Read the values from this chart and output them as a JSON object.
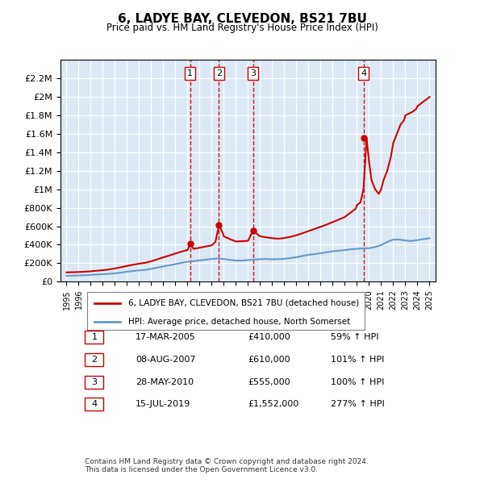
{
  "title": "6, LADYE BAY, CLEVEDON, BS21 7BU",
  "subtitle": "Price paid vs. HM Land Registry's House Price Index (HPI)",
  "background_color": "#dce9f5",
  "plot_bg_color": "#dce9f5",
  "ylabel_color": "#000000",
  "grid_color": "#ffffff",
  "hpi_line_color": "#6699cc",
  "price_line_color": "#cc0000",
  "dashed_line_color": "#cc0000",
  "ylim": [
    0,
    2400000
  ],
  "yticks": [
    0,
    200000,
    400000,
    600000,
    800000,
    1000000,
    1200000,
    1400000,
    1600000,
    1800000,
    2000000,
    2200000
  ],
  "ytick_labels": [
    "£0",
    "£200K",
    "£400K",
    "£600K",
    "£800K",
    "£1M",
    "£1.2M",
    "£1.4M",
    "£1.6M",
    "£1.8M",
    "£2M",
    "£2.2M"
  ],
  "xlim_start": 1994.5,
  "xlim_end": 2025.5,
  "xtick_years": [
    1995,
    1996,
    1997,
    1998,
    1999,
    2000,
    2001,
    2002,
    2003,
    2004,
    2005,
    2006,
    2007,
    2008,
    2009,
    2010,
    2011,
    2012,
    2013,
    2014,
    2015,
    2016,
    2017,
    2018,
    2019,
    2020,
    2021,
    2022,
    2023,
    2024,
    2025
  ],
  "sale_points": [
    {
      "year": 2005.21,
      "price": 410000,
      "label": "1"
    },
    {
      "year": 2007.6,
      "price": 610000,
      "label": "2"
    },
    {
      "year": 2010.41,
      "price": 555000,
      "label": "3"
    },
    {
      "year": 2019.54,
      "price": 1552000,
      "label": "4"
    }
  ],
  "hpi_data_x": [
    1995,
    1995.5,
    1996,
    1996.5,
    1997,
    1997.5,
    1998,
    1998.5,
    1999,
    1999.5,
    2000,
    2000.5,
    2001,
    2001.5,
    2002,
    2002.5,
    2003,
    2003.5,
    2004,
    2004.5,
    2005,
    2005.5,
    2006,
    2006.5,
    2007,
    2007.5,
    2008,
    2008.5,
    2009,
    2009.5,
    2010,
    2010.5,
    2011,
    2011.5,
    2012,
    2012.5,
    2013,
    2013.5,
    2014,
    2014.5,
    2015,
    2015.5,
    2016,
    2016.5,
    2017,
    2017.5,
    2018,
    2018.5,
    2019,
    2019.5,
    2020,
    2020.5,
    2021,
    2021.5,
    2022,
    2022.5,
    2023,
    2023.5,
    2024,
    2024.5,
    2025
  ],
  "hpi_data_y": [
    62000,
    64000,
    67000,
    69000,
    73000,
    77000,
    80000,
    84000,
    90000,
    98000,
    107000,
    115000,
    122000,
    128000,
    138000,
    152000,
    165000,
    177000,
    190000,
    203000,
    215000,
    222000,
    230000,
    238000,
    246000,
    250000,
    245000,
    235000,
    228000,
    228000,
    233000,
    238000,
    243000,
    245000,
    242000,
    243000,
    247000,
    255000,
    265000,
    278000,
    290000,
    298000,
    308000,
    318000,
    328000,
    335000,
    342000,
    350000,
    355000,
    360000,
    362000,
    375000,
    395000,
    430000,
    455000,
    455000,
    445000,
    440000,
    450000,
    460000,
    470000
  ],
  "price_data_x": [
    1995,
    1995.3,
    1995.6,
    1996,
    1996.5,
    1997,
    1997.5,
    1998,
    1998.5,
    1999,
    1999.5,
    2000,
    2000.5,
    2001,
    2001.5,
    2002,
    2002.5,
    2003,
    2003.5,
    2004,
    2004.5,
    2005,
    2005.21,
    2005.5,
    2006,
    2006.5,
    2007,
    2007.3,
    2007.6,
    2007.9,
    2008,
    2008.5,
    2009,
    2009.5,
    2010,
    2010.41,
    2010.8,
    2011,
    2011.5,
    2012,
    2012.5,
    2013,
    2013.5,
    2014,
    2014.5,
    2015,
    2015.5,
    2016,
    2016.5,
    2017,
    2017.5,
    2018,
    2018.3,
    2018.6,
    2018.9,
    2019,
    2019.3,
    2019.54,
    2019.8,
    2020,
    2020.2,
    2020.5,
    2020.8,
    2021,
    2021.2,
    2021.5,
    2021.8,
    2022,
    2022.3,
    2022.6,
    2022.9,
    2023,
    2023.3,
    2023.6,
    2023.9,
    2024,
    2024.3,
    2024.6,
    2025
  ],
  "price_data_y": [
    100000,
    101000,
    102000,
    104000,
    107000,
    112000,
    118000,
    124000,
    132000,
    143000,
    156000,
    170000,
    183000,
    194000,
    204000,
    220000,
    242000,
    263000,
    283000,
    304000,
    325000,
    343000,
    410000,
    355000,
    367000,
    380000,
    393000,
    430000,
    610000,
    530000,
    490000,
    460000,
    435000,
    438000,
    442000,
    555000,
    510000,
    490000,
    480000,
    470000,
    465000,
    472000,
    485000,
    502000,
    524000,
    548000,
    570000,
    594000,
    618000,
    645000,
    672000,
    700000,
    730000,
    760000,
    790000,
    830000,
    860000,
    1000000,
    1552000,
    1300000,
    1100000,
    1000000,
    950000,
    1000000,
    1100000,
    1200000,
    1350000,
    1500000,
    1600000,
    1700000,
    1750000,
    1800000,
    1820000,
    1840000,
    1870000,
    1900000,
    1930000,
    1960000,
    2000000
  ],
  "legend_entries": [
    {
      "label": "6, LADYE BAY, CLEVEDON, BS21 7BU (detached house)",
      "color": "#cc0000"
    },
    {
      "label": "HPI: Average price, detached house, North Somerset",
      "color": "#6699cc"
    }
  ],
  "table_rows": [
    {
      "num": "1",
      "date": "17-MAR-2005",
      "price": "£410,000",
      "change": "59% ↑ HPI"
    },
    {
      "num": "2",
      "date": "08-AUG-2007",
      "price": "£610,000",
      "change": "101% ↑ HPI"
    },
    {
      "num": "3",
      "date": "28-MAY-2010",
      "price": "£555,000",
      "change": "100% ↑ HPI"
    },
    {
      "num": "4",
      "date": "15-JUL-2019",
      "price": "£1,552,000",
      "change": "277% ↑ HPI"
    }
  ],
  "footnote": "Contains HM Land Registry data © Crown copyright and database right 2024.\nThis data is licensed under the Open Government Licence v3.0."
}
